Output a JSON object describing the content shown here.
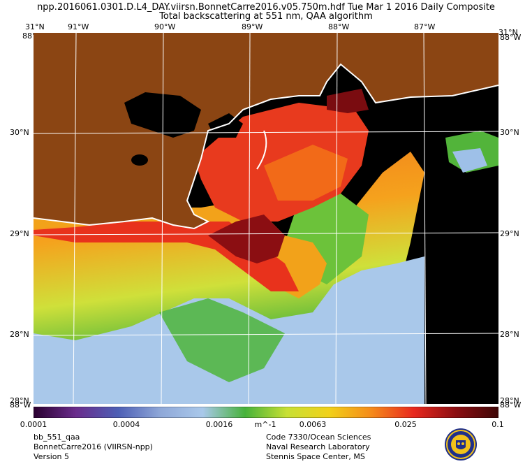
{
  "header": {
    "title_line1": "npp.2016061.0301.D.L4_DAY.viirsn.BonnetCarre2016.v05.750m.hdf      Tue Mar  1 2016 Daily Composite",
    "title_line2": "Total backscattering at 551 nm, QAA algorithm"
  },
  "map": {
    "top_lon_labels": [
      "91°W",
      "90°W",
      "89°W",
      "88°W",
      "87°W"
    ],
    "left_lat_labels": [
      "30°N",
      "29°N",
      "28°N"
    ],
    "corner_lat_top": "31°N",
    "corner_lon_top": "88°W",
    "corner_lat_bottom": "28°N",
    "corner_lon_bottom": "88°W",
    "land_color": "#8b4513",
    "nodata_color": "#000000",
    "coast_color": "#ffffff",
    "grid_color": "#ffffff"
  },
  "colorbar": {
    "ticks": [
      "0.0001",
      "0.0004",
      "0.0016",
      "m^-1",
      "0.0063",
      "0.025",
      "0.1"
    ],
    "stops": [
      "#2a0030",
      "#6a2c8c",
      "#4d5fb5",
      "#8fa8d8",
      "#a9c8ea",
      "#46b23a",
      "#c8e034",
      "#f1d11a",
      "#f58a1a",
      "#e8281e",
      "#8b0e12",
      "#3e0606"
    ]
  },
  "footer": {
    "left": [
      "bb_551_qaa",
      "BonnetCarre2016 (VIIRSN-npp)",
      "Version 5"
    ],
    "right": [
      "Code 7330/Ocean Sciences",
      "Naval Research Laboratory",
      "Stennis Space Center, MS"
    ]
  }
}
